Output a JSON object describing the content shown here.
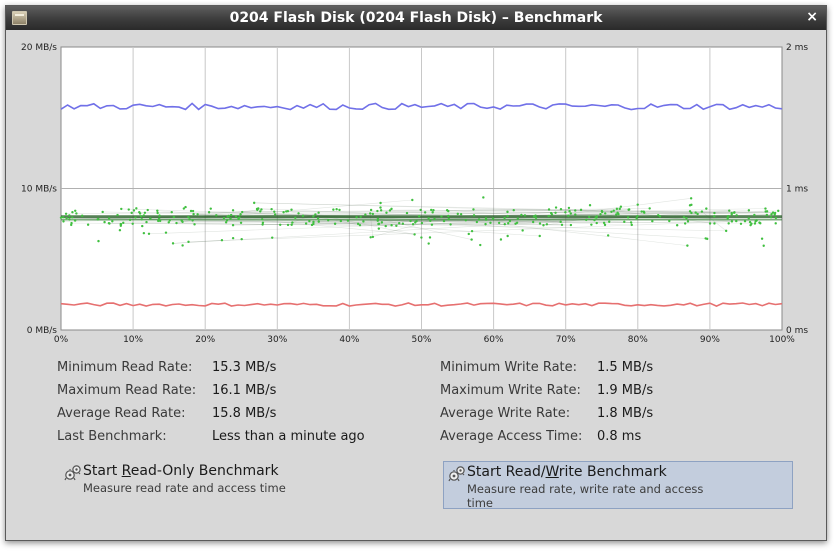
{
  "window": {
    "title": "0204 Flash Disk (0204 Flash Disk) – Benchmark",
    "close_glyph": "×"
  },
  "chart_data": {
    "type": "line",
    "left_axis": {
      "labels": [
        "20 MB/s",
        "10 MB/s",
        "0 MB/s"
      ],
      "range": [
        0,
        20
      ]
    },
    "right_axis": {
      "labels": [
        "2 ms",
        "1 ms",
        "0 ms"
      ],
      "range": [
        0,
        2
      ]
    },
    "x_ticks": [
      "0%",
      "10%",
      "20%",
      "30%",
      "40%",
      "50%",
      "60%",
      "70%",
      "80%",
      "90%",
      "100%"
    ],
    "grid": true,
    "read_rate": {
      "color": "#7070e8",
      "approx_mean": 15.8,
      "min": 15.3,
      "max": 16.1
    },
    "write_rate": {
      "color": "#e67070",
      "approx_mean": 1.8,
      "min": 1.5,
      "max": 1.9
    },
    "access_time": {
      "color": "#40c040",
      "approx_mean_ms": 0.8
    }
  },
  "stats": {
    "left": [
      {
        "label": "Minimum Read Rate:",
        "value": "15.3 MB/s"
      },
      {
        "label": "Maximum Read Rate:",
        "value": "16.1 MB/s"
      },
      {
        "label": "Average Read Rate:",
        "value": "15.8 MB/s"
      },
      {
        "label": "Last Benchmark:",
        "value": "Less than a minute ago"
      }
    ],
    "right": [
      {
        "label": "Minimum Write Rate:",
        "value": "1.5 MB/s"
      },
      {
        "label": "Maximum Write Rate:",
        "value": "1.9 MB/s"
      },
      {
        "label": "Average Write Rate:",
        "value": "1.8 MB/s"
      },
      {
        "label": "Average Access Time:",
        "value": "0.8 ms"
      }
    ]
  },
  "buttons": {
    "read_only": {
      "title_pre": "Start ",
      "mnemonic": "R",
      "title_post": "ead-Only Benchmark",
      "subtitle": "Measure read rate and access time"
    },
    "read_write": {
      "title_pre": "Start Read/",
      "mnemonic": "W",
      "title_post": "rite Benchmark",
      "subtitle": "Measure read rate, write rate and access time"
    }
  },
  "icons": {
    "app": "disk-utility-icon",
    "close": "close-icon",
    "benchmark": "benchmark-gears-icon"
  }
}
